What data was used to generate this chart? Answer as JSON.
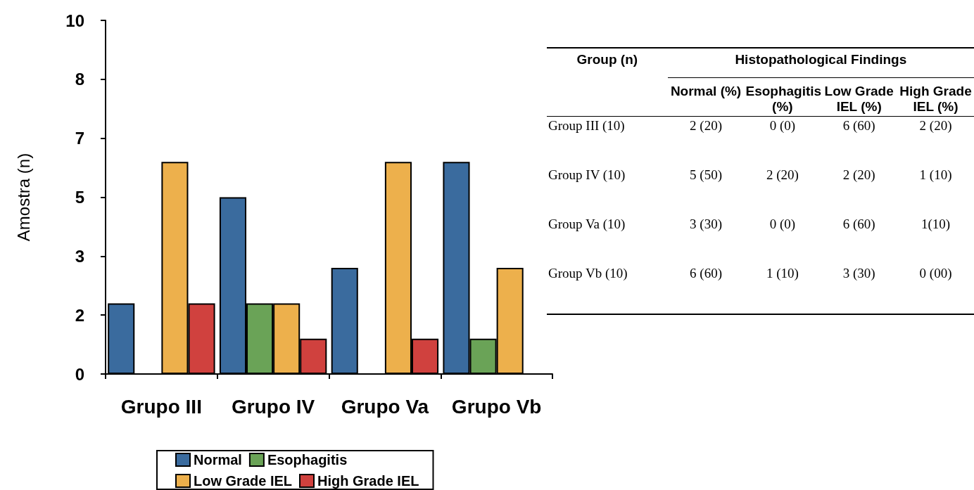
{
  "chart_data": [
    {
      "type": "bar",
      "ylabel": "Amostra (n)",
      "categories": [
        "Grupo III",
        "Grupo IV",
        "Grupo Va",
        "Grupo Vb"
      ],
      "series": [
        {
          "name": "Normal",
          "color": "#3a6b9e",
          "values": [
            2,
            5,
            3,
            6
          ]
        },
        {
          "name": "Esophagitis",
          "color": "#6aa357",
          "values": [
            0,
            2,
            0,
            1
          ]
        },
        {
          "name": "Low Grade IEL",
          "color": "#edb04c",
          "values": [
            6,
            2,
            6,
            3
          ]
        },
        {
          "name": "High Grade IEL",
          "color": "#d0413e",
          "values": [
            2,
            1,
            1,
            0
          ]
        }
      ],
      "ylim": [
        0,
        10
      ],
      "yticks": [
        0,
        {
          "value": 1.667,
          "label": "2"
        },
        {
          "value": 3.333,
          "label": "3"
        },
        5,
        {
          "value": 6.667,
          "label": "7"
        },
        {
          "value": 8.333,
          "label": "8"
        },
        10
      ],
      "legend": "bottom"
    },
    {
      "type": "other",
      "title": "Histopathological Findings",
      "annotations": [
        "Group (n)"
      ],
      "categories": [
        "Normal (%)",
        "Esophagitis (%)",
        "Low Grade IEL (%)",
        "High Grade IEL (%)"
      ],
      "y_categories": [
        "Group III (10)",
        "Group IV (10)",
        "Group Va (10)",
        "Group Vb (10)"
      ],
      "cell_labels": [
        [
          "2 (20)",
          "0 (0)",
          "6 (60)",
          "2 (20)"
        ],
        [
          "5 (50)",
          "2 (20)",
          "2 (20)",
          "1 (10)"
        ],
        [
          "3 (30)",
          "0 (0)",
          "6 (60)",
          "1(10)"
        ],
        [
          "6 (60)",
          "1 (10)",
          "3 (30)",
          "0 (00)"
        ]
      ]
    }
  ]
}
